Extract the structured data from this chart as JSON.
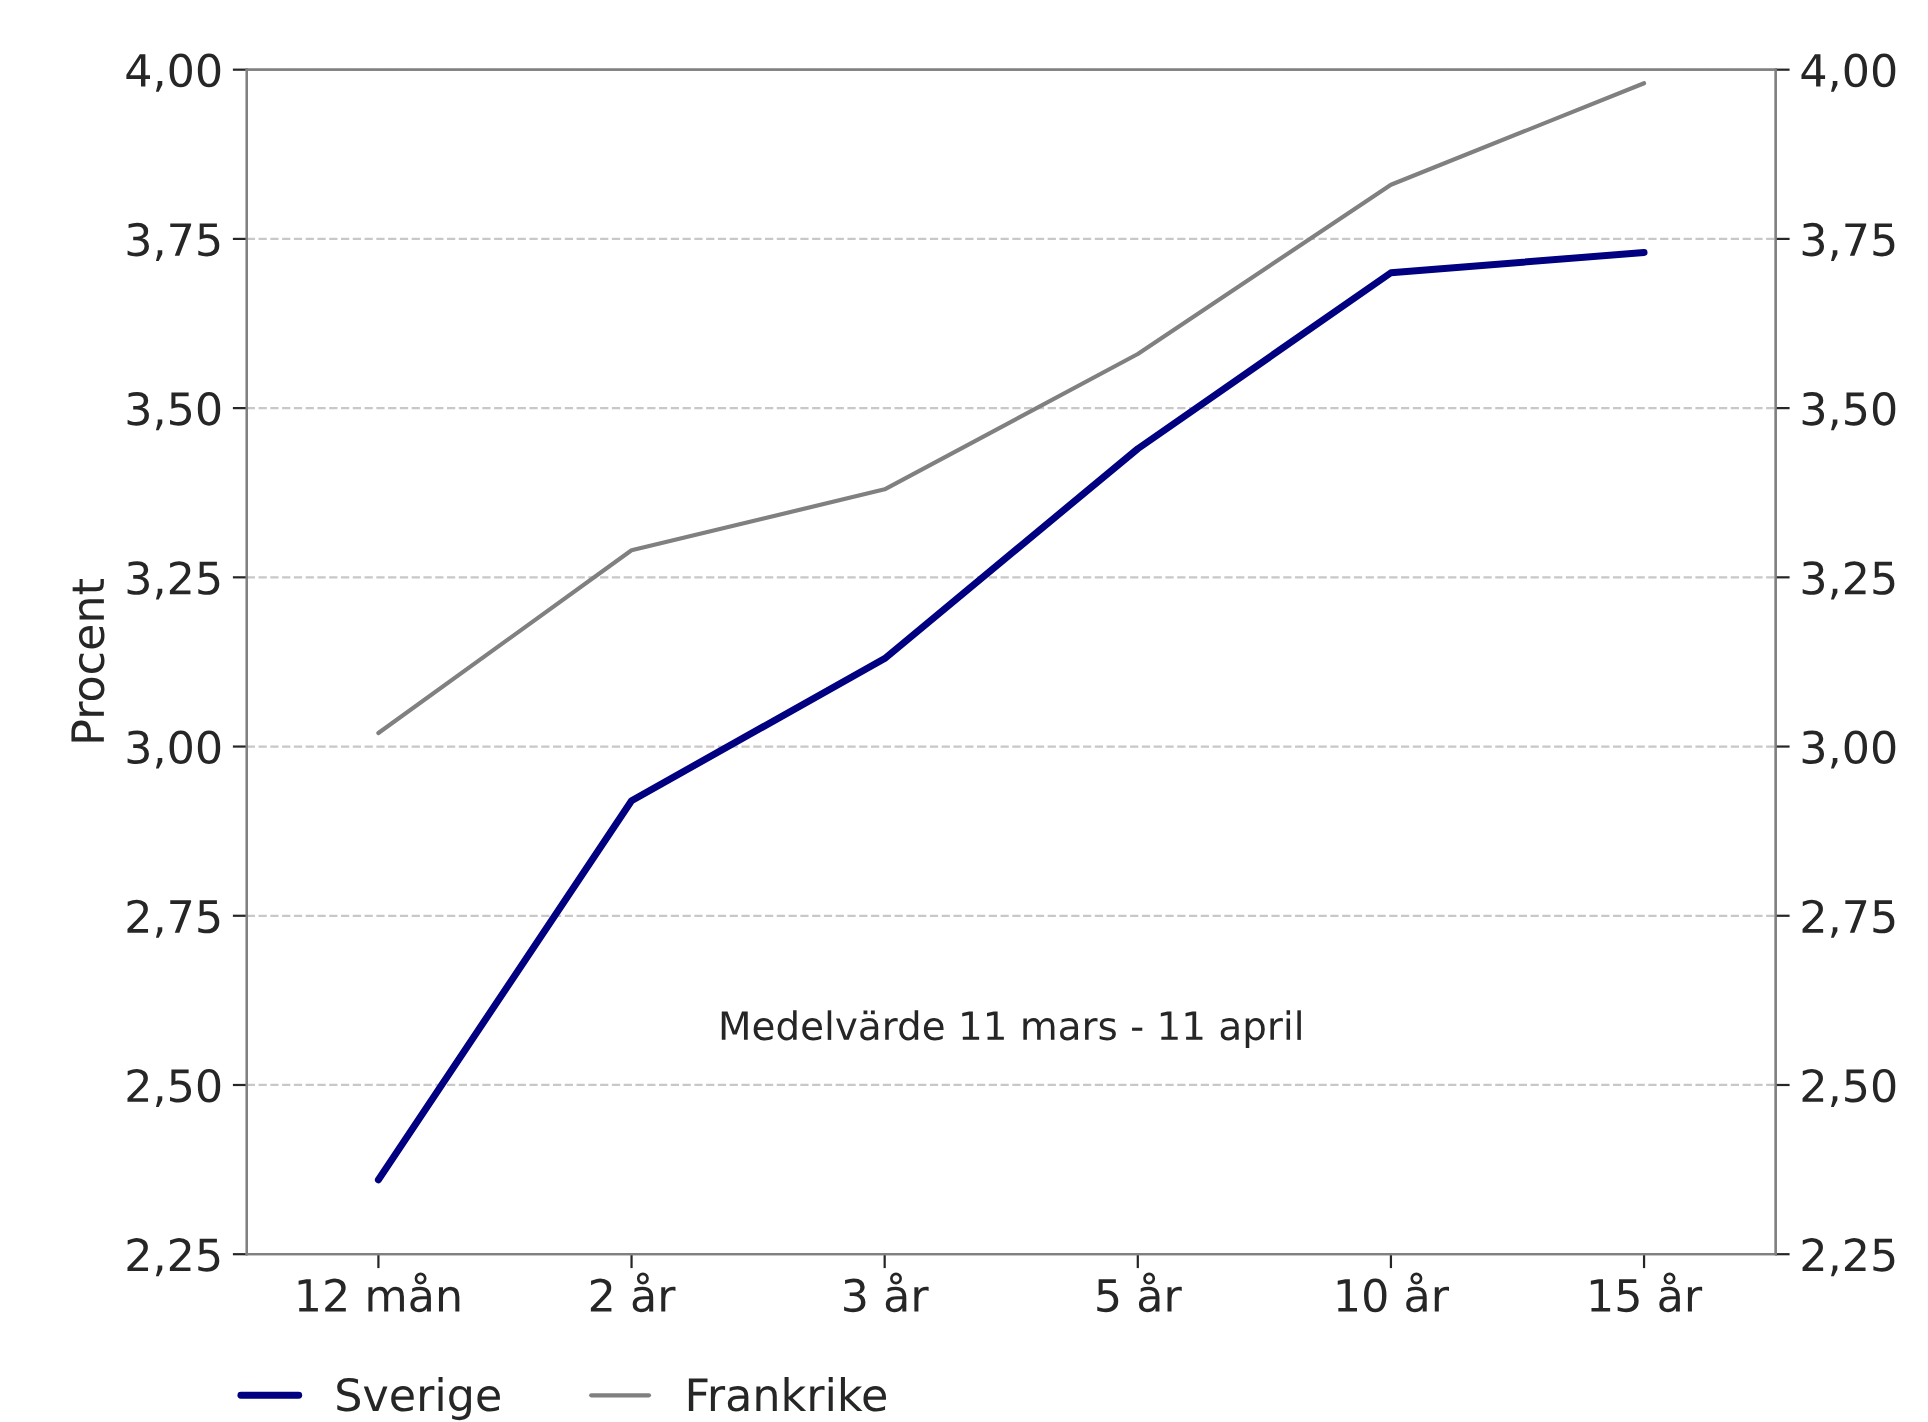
{
  "chart_data": {
    "type": "line",
    "ylabel": "Procent",
    "categories": [
      "12 mån",
      "2 år",
      "3 år",
      "5 år",
      "10 år",
      "15 år"
    ],
    "series": [
      {
        "name": "Sverige",
        "color": "#000080",
        "values": [
          2.36,
          2.92,
          3.13,
          3.44,
          3.7,
          3.73
        ]
      },
      {
        "name": "Frankrike",
        "color": "#808080",
        "values": [
          3.02,
          3.29,
          3.38,
          3.58,
          3.83,
          3.98
        ]
      }
    ],
    "ylim": [
      2.25,
      4.0
    ],
    "yticks": [
      {
        "value": 2.25,
        "label": "2,25"
      },
      {
        "value": 2.5,
        "label": "2,50"
      },
      {
        "value": 2.75,
        "label": "2,75"
      },
      {
        "value": 3.0,
        "label": "3,00"
      },
      {
        "value": 3.25,
        "label": "3,25"
      },
      {
        "value": 3.5,
        "label": "3,50"
      },
      {
        "value": 3.75,
        "label": "3,75"
      },
      {
        "value": 4.0,
        "label": "4,00"
      }
    ],
    "y2lim": [
      2.25,
      4.0
    ],
    "y2ticks": [
      {
        "value": 2.25,
        "label": "2,25"
      },
      {
        "value": 2.5,
        "label": "2,50"
      },
      {
        "value": 2.75,
        "label": "2,75"
      },
      {
        "value": 3.0,
        "label": "3,00"
      },
      {
        "value": 3.25,
        "label": "3,25"
      },
      {
        "value": 3.5,
        "label": "3,50"
      },
      {
        "value": 3.75,
        "label": "3,75"
      },
      {
        "value": 4.0,
        "label": "4,00"
      }
    ],
    "annotations": [
      "Medelvärde 11 mars - 11 april"
    ],
    "grid": "y",
    "legend": "bottom",
    "marker": "none",
    "line_style": "solid"
  }
}
